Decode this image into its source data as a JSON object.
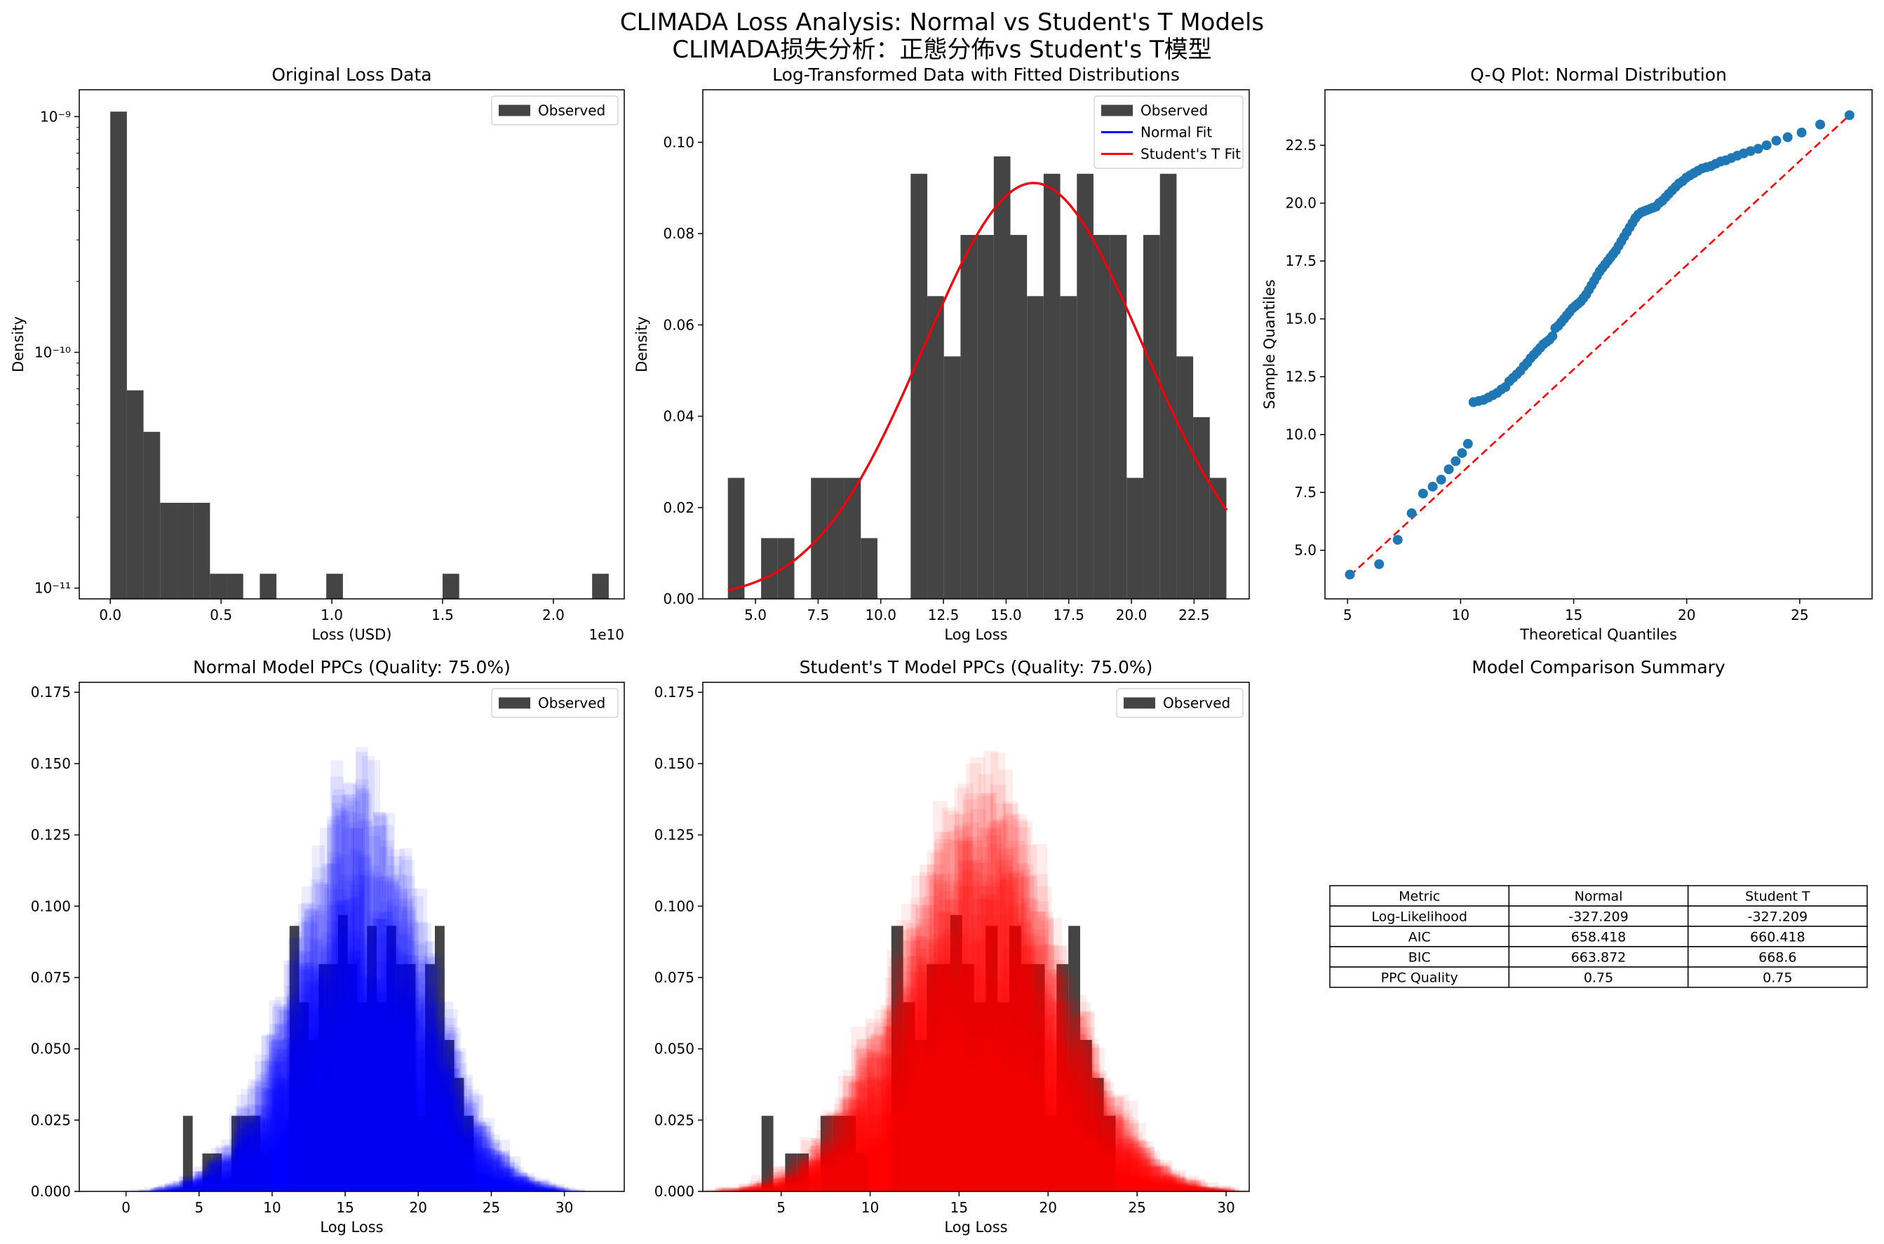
{
  "figure": {
    "title_line1": "CLIMADA Loss Analysis: Normal vs Student's T Models",
    "title_line2": "CLIMADA损失分析：正態分佈vs Student's T模型"
  },
  "colors": {
    "observed": "#444444",
    "normal": "#0000ff",
    "student_t": "#ff0000",
    "qq_points": "#1f77b4",
    "qq_line": "#ff0000"
  },
  "chart_data": [
    {
      "id": "orig",
      "type": "bar",
      "title": "Original Loss Data",
      "xlabel": "Loss (USD)",
      "ylabel": "Density",
      "x_offset_label": "1e10",
      "xscale": "linear",
      "yscale": "log",
      "xlim": [
        -0.14,
        2.32
      ],
      "ylim": [
        9e-12,
        1.3e-09
      ],
      "xticks": [
        0.0,
        0.5,
        1.0,
        1.5,
        2.0
      ],
      "xtick_labels": [
        "0.0",
        "0.5",
        "1.0",
        "1.5",
        "2.0"
      ],
      "yticks": [
        1e-11,
        1e-10,
        1e-09
      ],
      "ytick_labels": [
        "10⁻¹¹",
        "10⁻¹⁰",
        "10⁻⁹"
      ],
      "grid": false,
      "legend": {
        "position": "upper-right",
        "entries": [
          {
            "label": "Observed",
            "kind": "patch",
            "color": "#444444"
          }
        ]
      },
      "bins": {
        "start": 0.0,
        "width": 0.075
      },
      "values": [
        1.05e-09,
        6.9e-11,
        4.6e-11,
        2.3e-11,
        2.3e-11,
        2.3e-11,
        1.15e-11,
        1.15e-11,
        0,
        1.15e-11,
        0,
        0,
        0,
        1.15e-11,
        0,
        0,
        0,
        0,
        0,
        0,
        1.15e-11,
        0,
        0,
        0,
        0,
        0,
        0,
        0,
        0,
        1.15e-11
      ]
    },
    {
      "id": "logfit",
      "type": "bar",
      "title": "Log-Transformed Data with Fitted Distributions",
      "xlabel": "Log Loss",
      "ylabel": "Density",
      "xlim": [
        2.9,
        24.7
      ],
      "ylim": [
        0,
        0.1115
      ],
      "xticks": [
        5.0,
        7.5,
        10.0,
        12.5,
        15.0,
        17.5,
        20.0,
        22.5
      ],
      "xtick_labels": [
        "5.0",
        "7.5",
        "10.0",
        "12.5",
        "15.0",
        "17.5",
        "20.0",
        "22.5"
      ],
      "yticks": [
        0.0,
        0.02,
        0.04,
        0.06,
        0.08,
        0.1
      ],
      "ytick_labels": [
        "0.00",
        "0.02",
        "0.04",
        "0.06",
        "0.08",
        "0.10"
      ],
      "grid": false,
      "legend": {
        "position": "upper-right",
        "entries": [
          {
            "label": "Observed",
            "kind": "patch",
            "color": "#444444"
          },
          {
            "label": "Normal Fit",
            "kind": "line",
            "color": "#0000ff"
          },
          {
            "label": "Student's T Fit",
            "kind": "line",
            "color": "#ff0000"
          }
        ]
      },
      "bins": {
        "start": 3.9,
        "width": 0.663
      },
      "values": [
        0.0265,
        0,
        0.0133,
        0.0133,
        0,
        0.0265,
        0.0265,
        0.0265,
        0.0133,
        0,
        0,
        0.0931,
        0.0663,
        0.0531,
        0.0797,
        0.0797,
        0.0969,
        0.0797,
        0.0663,
        0.0931,
        0.0663,
        0.0931,
        0.0797,
        0.0797,
        0.0265,
        0.0797,
        0.0931,
        0.0531,
        0.0398,
        0.0265
      ],
      "fit": {
        "mean": 16.1,
        "sd": 4.38,
        "x_range": [
          3.9,
          23.8
        ]
      }
    },
    {
      "id": "qq",
      "type": "scatter",
      "title": "Q-Q Plot: Normal Distribution",
      "xlabel": "Theoretical Quantiles",
      "ylabel": "Sample Quantiles",
      "xlim": [
        4.0,
        28.2
      ],
      "ylim": [
        2.9,
        24.9
      ],
      "xticks": [
        5,
        10,
        15,
        20,
        25
      ],
      "xtick_labels": [
        "5",
        "10",
        "15",
        "20",
        "25"
      ],
      "yticks": [
        5.0,
        7.5,
        10.0,
        12.5,
        15.0,
        17.5,
        20.0,
        22.5
      ],
      "ytick_labels": [
        "5.0",
        "7.5",
        "10.0",
        "12.5",
        "15.0",
        "17.5",
        "20.0",
        "22.5"
      ],
      "grid": false,
      "ref_line": [
        [
          5.1,
          3.9
        ],
        [
          27.2,
          23.8
        ]
      ],
      "quantile_range": [
        5.1,
        27.2
      ],
      "sample": [
        3.95,
        4.4,
        5.45,
        6.6,
        7.45,
        7.75,
        8.05,
        8.5,
        8.85,
        9.2,
        9.6,
        11.4,
        11.45,
        11.5,
        11.6,
        11.7,
        11.8,
        11.95,
        12.05,
        12.3,
        12.45,
        12.6,
        12.75,
        12.95,
        13.1,
        13.3,
        13.45,
        13.6,
        13.75,
        13.9,
        14.0,
        14.1,
        14.25,
        14.6,
        14.7,
        14.85,
        15.0,
        15.15,
        15.3,
        15.45,
        15.55,
        15.65,
        15.75,
        15.9,
        16.05,
        16.25,
        16.45,
        16.65,
        16.85,
        17.05,
        17.2,
        17.35,
        17.5,
        17.65,
        17.8,
        17.95,
        18.15,
        18.35,
        18.55,
        18.75,
        18.95,
        19.15,
        19.35,
        19.5,
        19.6,
        19.65,
        19.7,
        19.75,
        19.8,
        19.85,
        20.0,
        20.1,
        20.25,
        20.4,
        20.55,
        20.7,
        20.85,
        20.95,
        21.1,
        21.2,
        21.3,
        21.4,
        21.5,
        21.55,
        21.6,
        21.7,
        21.8,
        21.85,
        21.95,
        22.05,
        22.15,
        22.25,
        22.35,
        22.5,
        22.7,
        22.85,
        23.05,
        23.4,
        23.8
      ]
    },
    {
      "id": "ppc_normal",
      "type": "bar",
      "title": "Normal Model PPCs (Quality: 75.0%)",
      "xlabel": "Log Loss",
      "ylabel": "",
      "xlim": [
        -3.2,
        34.1
      ],
      "ylim": [
        0,
        0.1785
      ],
      "xticks": [
        0,
        5,
        10,
        15,
        20,
        25,
        30
      ],
      "xtick_labels": [
        "0",
        "5",
        "10",
        "15",
        "20",
        "25",
        "30"
      ],
      "yticks": [
        0.0,
        0.025,
        0.05,
        0.075,
        0.1,
        0.125,
        0.15,
        0.175
      ],
      "ytick_labels": [
        "0.000",
        "0.025",
        "0.050",
        "0.075",
        "0.100",
        "0.125",
        "0.150",
        "0.175"
      ],
      "grid": false,
      "legend": {
        "position": "upper-right",
        "entries": [
          {
            "label": "Observed",
            "kind": "patch",
            "color": "#444444"
          }
        ]
      },
      "ppc_color": "#0000ff",
      "ppc_model": {
        "mean": 16.1,
        "sd": 4.4,
        "draws": 50,
        "alpha": 0.07
      },
      "bins": {
        "start": 3.9,
        "width": 0.663
      },
      "values": [
        0.0265,
        0,
        0.0133,
        0.0133,
        0,
        0.0265,
        0.0265,
        0.0265,
        0.0133,
        0,
        0,
        0.0931,
        0.0663,
        0.0531,
        0.0797,
        0.0797,
        0.0969,
        0.0797,
        0.0663,
        0.0931,
        0.0663,
        0.0931,
        0.0797,
        0.0797,
        0.0265,
        0.0797,
        0.0931,
        0.0531,
        0.0398,
        0.0265
      ]
    },
    {
      "id": "ppc_t",
      "type": "bar",
      "title": "Student's T Model PPCs (Quality: 75.0%)",
      "xlabel": "Log Loss",
      "ylabel": "",
      "xlim": [
        0.6,
        31.3
      ],
      "ylim": [
        0,
        0.1785
      ],
      "xticks": [
        5,
        10,
        15,
        20,
        25,
        30
      ],
      "xtick_labels": [
        "5",
        "10",
        "15",
        "20",
        "25",
        "30"
      ],
      "yticks": [
        0.0,
        0.025,
        0.05,
        0.075,
        0.1,
        0.125,
        0.15,
        0.175
      ],
      "ytick_labels": [
        "0.000",
        "0.025",
        "0.050",
        "0.075",
        "0.100",
        "0.125",
        "0.150",
        "0.175"
      ],
      "grid": false,
      "legend": {
        "position": "upper-right",
        "entries": [
          {
            "label": "Observed",
            "kind": "patch",
            "color": "#444444"
          }
        ]
      },
      "ppc_color": "#ff0000",
      "ppc_model": {
        "mean": 16.1,
        "sd": 4.4,
        "draws": 50,
        "alpha": 0.07
      },
      "bins": {
        "start": 3.9,
        "width": 0.663
      },
      "values": [
        0.0265,
        0,
        0.0133,
        0.0133,
        0,
        0.0265,
        0.0265,
        0.0265,
        0.0133,
        0,
        0,
        0.0931,
        0.0663,
        0.0531,
        0.0797,
        0.0797,
        0.0969,
        0.0797,
        0.0663,
        0.0931,
        0.0663,
        0.0931,
        0.0797,
        0.0797,
        0.0265,
        0.0797,
        0.0931,
        0.0531,
        0.0398,
        0.0265
      ]
    },
    {
      "id": "summary",
      "type": "table",
      "title": "Model Comparison Summary",
      "columns": [
        "Metric",
        "Normal",
        "Student T"
      ],
      "rows": [
        [
          "Log-Likelihood",
          "-327.209",
          "-327.209"
        ],
        [
          "AIC",
          "658.418",
          "660.418"
        ],
        [
          "BIC",
          "663.872",
          "668.6"
        ],
        [
          "PPC Quality",
          "0.75",
          "0.75"
        ]
      ]
    }
  ]
}
